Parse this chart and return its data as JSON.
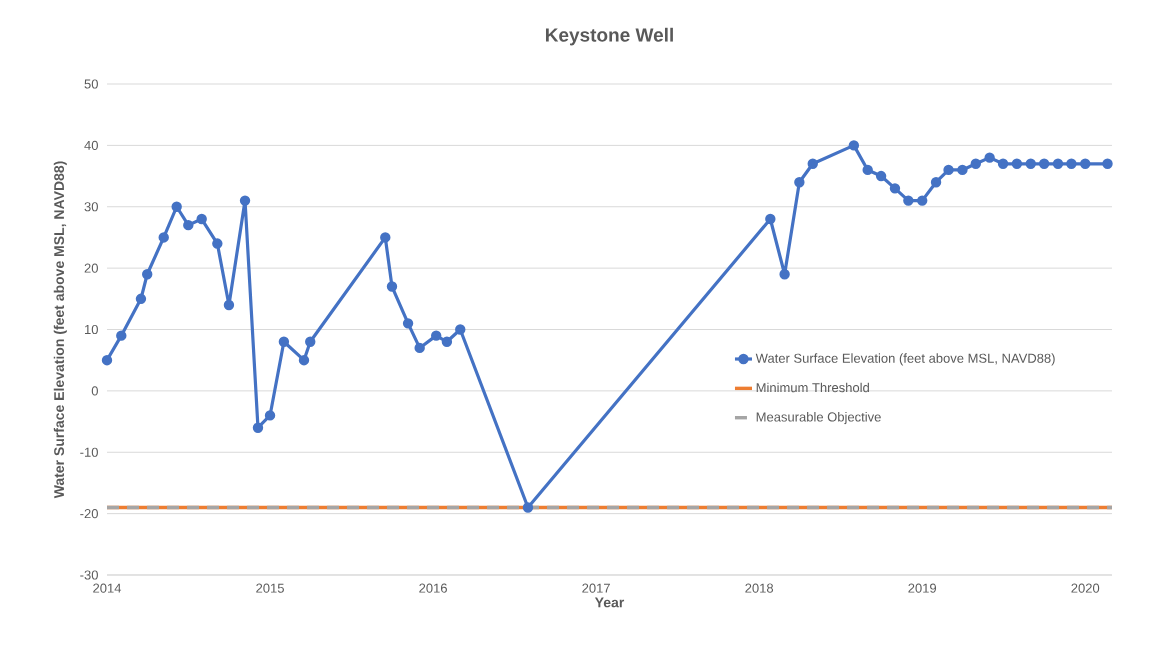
{
  "chart_data": {
    "type": "line",
    "title": "Keystone Well",
    "xlabel": "Year",
    "ylabel": "Water Surface Elevation (feet above MSL, NAVD88)",
    "x": [
      "2014-01-01",
      "2014-02-02",
      "2014-03-18",
      "2014-04-01",
      "2014-05-08",
      "2014-06-06",
      "2014-07-02",
      "2014-08-01",
      "2014-09-05",
      "2014-10-01",
      "2014-11-06",
      "2014-12-05",
      "2015-01-01",
      "2015-02-01",
      "2015-03-18",
      "2015-04-01",
      "2015-09-16",
      "2015-10-01",
      "2015-11-06",
      "2015-12-02",
      "2016-01-08",
      "2016-02-01",
      "2016-03-02",
      "2016-08-01",
      "2018-01-26",
      "2018-02-27",
      "2018-04-01",
      "2018-05-01",
      "2018-08-01",
      "2018-09-01",
      "2018-10-01",
      "2018-11-01",
      "2018-12-01",
      "2019-01-01",
      "2019-02-01",
      "2019-03-01",
      "2019-04-01",
      "2019-05-01",
      "2019-06-01",
      "2019-07-01",
      "2019-08-01",
      "2019-09-01",
      "2019-10-01",
      "2019-11-01",
      "2019-12-01",
      "2020-01-01",
      "2020-02-20"
    ],
    "series": [
      {
        "name": "Water Surface Elevation (feet above MSL, NAVD88)",
        "color": "#4472c4",
        "values": [
          5,
          9,
          15,
          19,
          25,
          30,
          27,
          28,
          24,
          14,
          31,
          -6,
          -4,
          8,
          5,
          8,
          25,
          17,
          11,
          7,
          9,
          8,
          10,
          -19,
          28,
          19,
          34,
          37,
          40,
          36,
          35,
          33,
          31,
          31,
          34,
          36,
          36,
          37,
          38,
          37,
          37,
          37,
          37,
          37,
          37,
          37,
          37
        ]
      }
    ],
    "ref_lines": [
      {
        "axis": "y",
        "value": -19,
        "label": "Minimum Threshold",
        "color": "#ed7d31",
        "line_style": "solid"
      },
      {
        "axis": "y",
        "value": -19,
        "label": "Measurable Objective",
        "color": "#a5a5a5",
        "line_style": "dashed"
      }
    ],
    "xlim": [
      "2014-01-01",
      "2020-03-01"
    ],
    "xticks": [
      "2014",
      "2015",
      "2016",
      "2017",
      "2018",
      "2019",
      "2020"
    ],
    "ylim": [
      -30,
      50
    ],
    "yticks": [
      -30,
      -20,
      -10,
      0,
      10,
      20,
      30,
      40,
      50
    ],
    "grid": "y",
    "legend": "right",
    "marker": "circle",
    "line_style": "solid"
  }
}
